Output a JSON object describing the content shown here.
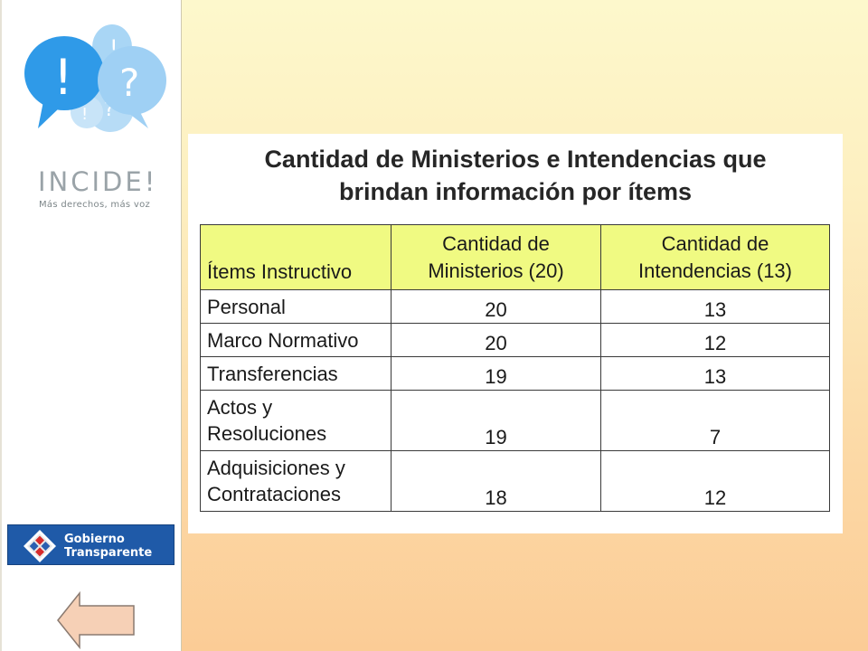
{
  "logo": {
    "name": "INCIDE!",
    "tagline": "Más derechos, más voz",
    "icon": "speech-bubbles-exclamation-question"
  },
  "sidebar": {
    "gobierno_logo": {
      "line1": "Gobierno",
      "line2": "Transparente"
    },
    "back_icon": "left-arrow-icon"
  },
  "slide": {
    "title_line1": "Cantidad de Ministerios e Intendencias que",
    "title_line2": "brindan información por ítems",
    "table": {
      "headers": [
        "Ítems Instructivo",
        "Cantidad de Ministerios (20)",
        "Cantidad de Intendencias (13)"
      ],
      "header_lines": [
        [
          "Ítems Instructivo"
        ],
        [
          "Cantidad de",
          "Ministerios (20)"
        ],
        [
          "Cantidad de",
          "Intendencias (13)"
        ]
      ],
      "rows": [
        {
          "item": "Personal",
          "ministerios": "20",
          "intendencias": "13"
        },
        {
          "item": "Marco Normativo",
          "ministerios": "20",
          "intendencias": "12"
        },
        {
          "item": "Transferencias",
          "ministerios": "19",
          "intendencias": "13"
        },
        {
          "item": "Actos y Resoluciones",
          "item_lines": [
            "Actos y",
            "Resoluciones"
          ],
          "ministerios": "19",
          "intendencias": "7"
        },
        {
          "item": "Adquisiciones y Contrataciones",
          "item_lines": [
            "Adquisiciones y",
            "Contrataciones"
          ],
          "ministerios": "18",
          "intendencias": "12"
        }
      ]
    }
  },
  "colors": {
    "header_fill": "#f0fa82",
    "bubble_dark": "#2f9ae8",
    "bubble_light": "#9fd0f4",
    "gt_blue": "#1f5aa8",
    "arrow_fill": "#f6d0b6"
  }
}
